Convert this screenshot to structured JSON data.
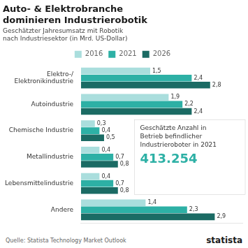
{
  "chart_data": {
    "type": "bar",
    "orientation": "horizontal",
    "title": "Auto- & Elektrobranche\ndominieren Industrierobotik",
    "subtitle": "Geschätzter Jahresumsatz mit Robotik\nnach Industriesektor (in Mrd. US-Dollar)",
    "categories": [
      "Elektro-/\nElektronikindustrie",
      "Autoindustrie",
      "Chemische Industrie",
      "Metallindustrie",
      "Lebensmittelindustrie",
      "Andere"
    ],
    "series": [
      {
        "name": "2016",
        "color": "#aadedd",
        "values": [
          1.5,
          1.9,
          0.3,
          0.4,
          0.4,
          1.4
        ],
        "value_labels": [
          "1,5",
          "1,9",
          "0,3",
          "0,4",
          "0,4",
          "1,4"
        ]
      },
      {
        "name": "2021",
        "color": "#2db0a5",
        "values": [
          2.4,
          2.2,
          0.4,
          0.7,
          0.7,
          2.3
        ],
        "value_labels": [
          "2,4",
          "2,2",
          "0,4",
          "0,7",
          "0,7",
          "2,3"
        ]
      },
      {
        "name": "2026",
        "color": "#1b6b64",
        "values": [
          2.8,
          2.4,
          0.5,
          0.8,
          0.8,
          2.9
        ],
        "value_labels": [
          "2,8",
          "2,4",
          "0,5",
          "0,8",
          "0,8",
          "2,9"
        ]
      }
    ],
    "xlim": [
      0,
      3.5
    ],
    "grid": false,
    "legend": "top",
    "data_labels": true,
    "tick_labels": "y",
    "annotations": [
      {
        "text": "Geschätzte Anzahl in\nBetrieb befindlicher\nIndustrieroboter in 2021"
      },
      {
        "text": "413.254",
        "color": "#2db0a5"
      }
    ],
    "source": "Quelle: Statista Technology Market Outlook",
    "logo": "statista"
  }
}
